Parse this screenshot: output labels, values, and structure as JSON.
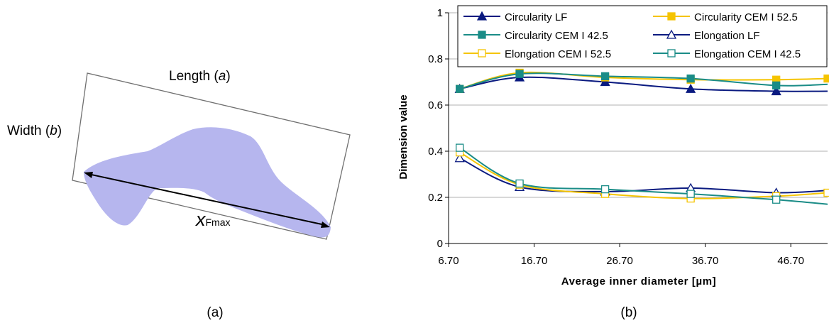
{
  "panel_a": {
    "length_text": "Length (",
    "length_var": "a",
    "length_close": ")",
    "width_text": "Width (",
    "width_var": "b",
    "width_close": ")",
    "xf_main": "x",
    "xf_sub": "Fmax",
    "caption": "(a)",
    "particle_color": "#b6b6ee"
  },
  "panel_b": {
    "caption": "(b)"
  },
  "chart_data": {
    "type": "line",
    "xlabel": "Average inner diameter [µm]",
    "ylabel": "Dimension value",
    "xlim": [
      6.7,
      51.0
    ],
    "ylim": [
      0,
      1
    ],
    "x_ticks": [
      "6.70",
      "16.70",
      "26.70",
      "36.70",
      "46.70"
    ],
    "y_ticks": [
      "0",
      "0.2",
      "0.4",
      "0.6",
      "0.8",
      "1"
    ],
    "x": [
      8.0,
      15.0,
      25.0,
      35.0,
      45.0,
      51.0
    ],
    "grid": "horizontal",
    "legend_position": "top",
    "series": [
      {
        "name": "Circularity LF",
        "color": "#0a1a80",
        "marker": "triangle",
        "filled": true,
        "values": [
          0.67,
          0.72,
          0.7,
          0.67,
          0.66,
          0.66
        ]
      },
      {
        "name": "Circularity CEM I 52.5",
        "color": "#f5c400",
        "marker": "square",
        "filled": true,
        "values": [
          0.67,
          0.74,
          0.72,
          0.71,
          0.71,
          0.715
        ]
      },
      {
        "name": "Circularity CEM I 42.5",
        "color": "#1a8c87",
        "marker": "square",
        "filled": true,
        "values": [
          0.67,
          0.735,
          0.725,
          0.715,
          0.685,
          0.69
        ]
      },
      {
        "name": "Elongation LF",
        "color": "#0a1a80",
        "marker": "triangle",
        "filled": false,
        "values": [
          0.37,
          0.245,
          0.225,
          0.24,
          0.22,
          0.23
        ]
      },
      {
        "name": "Elongation CEM I 52.5",
        "color": "#f5c400",
        "marker": "square",
        "filled": false,
        "values": [
          0.395,
          0.255,
          0.215,
          0.195,
          0.205,
          0.22
        ]
      },
      {
        "name": "Elongation CEM I 42.5",
        "color": "#1a8c87",
        "marker": "square",
        "filled": false,
        "values": [
          0.415,
          0.26,
          0.235,
          0.215,
          0.19,
          0.17
        ]
      }
    ]
  }
}
